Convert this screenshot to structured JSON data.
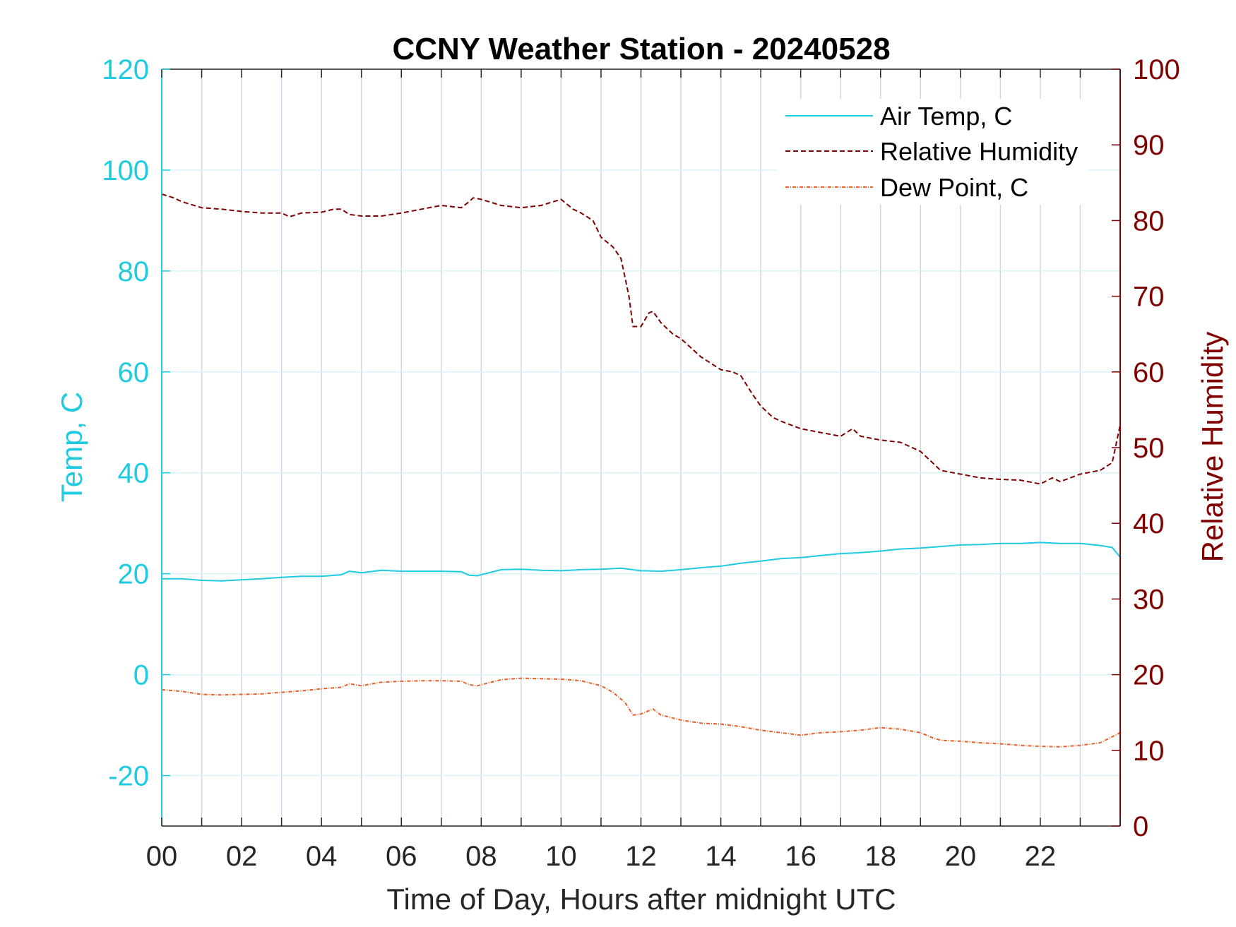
{
  "chart_data": {
    "type": "line",
    "title": "CCNY Weather Station - 20240528",
    "xlabel": "Time of Day, Hours after midnight UTC",
    "ylabel_left": "Temp, C",
    "ylabel_right": "Relative Humidity",
    "xlim": [
      0,
      24
    ],
    "ylim_left": [
      -30,
      120
    ],
    "ylim_right": [
      0,
      100
    ],
    "x_ticks": [
      0,
      2,
      4,
      6,
      8,
      10,
      12,
      14,
      16,
      18,
      20,
      22
    ],
    "x_tick_labels": [
      "00",
      "02",
      "04",
      "06",
      "08",
      "10",
      "12",
      "14",
      "16",
      "18",
      "20",
      "22"
    ],
    "y_left_ticks": [
      -20,
      0,
      20,
      40,
      60,
      80,
      100,
      120
    ],
    "y_left_tick_labels": [
      "-20",
      "0",
      "20",
      "40",
      "60",
      "80",
      "100",
      "120"
    ],
    "y_right_ticks": [
      0,
      10,
      20,
      30,
      40,
      50,
      60,
      70,
      80,
      90,
      100
    ],
    "y_right_tick_labels": [
      "0",
      "10",
      "20",
      "30",
      "40",
      "50",
      "60",
      "70",
      "80",
      "90",
      "100"
    ],
    "grid": true,
    "legend_position": "top-right",
    "colors": {
      "left_axis": "#1ecbe1",
      "right_axis": "#800000",
      "air_temp": "#1ecbe1",
      "humidity": "#800000",
      "dew_point": "#e4622a",
      "grid_vertical": "#cfd6dd",
      "grid_horizontal": "#d8f3f8"
    },
    "series": [
      {
        "name": "Air Temp, C",
        "axis": "left",
        "style": "solid",
        "x": [
          0,
          0.5,
          1,
          1.5,
          2,
          2.5,
          3,
          3.5,
          4,
          4.5,
          4.7,
          5,
          5.5,
          6,
          6.5,
          7,
          7.5,
          7.7,
          7.9,
          8.2,
          8.5,
          9,
          9.5,
          10,
          10.5,
          11,
          11.5,
          12,
          12.5,
          13,
          13.5,
          14,
          14.5,
          15,
          15.5,
          16,
          16.5,
          17,
          17.5,
          18,
          18.5,
          19,
          19.5,
          20,
          20.5,
          21,
          21.5,
          22,
          22.5,
          23,
          23.5,
          23.8,
          24
        ],
        "y": [
          19,
          19,
          18.7,
          18.6,
          18.8,
          19,
          19.3,
          19.5,
          19.5,
          19.8,
          20.5,
          20.2,
          20.7,
          20.5,
          20.5,
          20.5,
          20.4,
          19.7,
          19.6,
          20.2,
          20.8,
          20.9,
          20.7,
          20.6,
          20.8,
          20.9,
          21.1,
          20.6,
          20.5,
          20.8,
          21.2,
          21.5,
          22.1,
          22.5,
          23,
          23.2,
          23.6,
          24,
          24.2,
          24.5,
          24.9,
          25.1,
          25.4,
          25.7,
          25.8,
          26,
          26,
          26.2,
          26,
          26,
          25.6,
          25.2,
          23.3
        ]
      },
      {
        "name": "Relative Humidity",
        "axis": "right",
        "style": "dashed",
        "x": [
          0,
          0.3,
          0.5,
          1,
          1.5,
          2,
          2.5,
          3,
          3.2,
          3.5,
          4,
          4.3,
          4.5,
          4.7,
          5,
          5.5,
          6,
          6.5,
          7,
          7.5,
          7.7,
          7.8,
          8,
          8.5,
          9,
          9.5,
          10,
          10.3,
          10.5,
          10.8,
          11,
          11.3,
          11.5,
          11.7,
          11.8,
          12,
          12.2,
          12.3,
          12.5,
          12.8,
          13,
          13.5,
          14,
          14.3,
          14.5,
          14.8,
          15,
          15.3,
          15.5,
          16,
          16.5,
          17,
          17.3,
          17.5,
          18,
          18.5,
          19,
          19.3,
          19.5,
          20,
          20.5,
          21,
          21.5,
          22,
          22.3,
          22.5,
          23,
          23.5,
          23.8,
          24
        ],
        "y": [
          83.5,
          83,
          82.5,
          81.7,
          81.5,
          81.2,
          81,
          81,
          80.5,
          81,
          81.1,
          81.5,
          81.5,
          80.8,
          80.6,
          80.6,
          81,
          81.5,
          82,
          81.7,
          82.5,
          83,
          82.8,
          82,
          81.7,
          82,
          82.8,
          81.5,
          81,
          80,
          77.8,
          76.5,
          75,
          70,
          66,
          66,
          67.8,
          68,
          66.5,
          65,
          64.4,
          62,
          60.3,
          60,
          59.5,
          57,
          55.5,
          54,
          53.5,
          52.5,
          52,
          51.5,
          52.5,
          51.5,
          51,
          50.7,
          49.5,
          48,
          47,
          46.5,
          46,
          45.8,
          45.7,
          45.2,
          46,
          45.5,
          46.5,
          47,
          48,
          53
        ]
      },
      {
        "name": "Dew Point, C",
        "axis": "left",
        "style": "dashdot",
        "x": [
          0,
          0.5,
          1,
          1.5,
          2,
          2.5,
          3,
          3.5,
          4,
          4.5,
          4.7,
          5,
          5.5,
          6,
          6.5,
          7,
          7.5,
          7.7,
          7.9,
          8.5,
          9,
          9.5,
          10,
          10.5,
          11,
          11.3,
          11.6,
          11.8,
          12,
          12.3,
          12.5,
          13,
          13.5,
          14,
          14.5,
          15,
          15.5,
          16,
          16.5,
          17,
          17.5,
          18,
          18.5,
          19,
          19.3,
          19.5,
          20,
          20.5,
          21,
          21.5,
          22,
          22.5,
          23,
          23.5,
          24
        ],
        "y": [
          -3,
          -3.3,
          -3.9,
          -4,
          -3.9,
          -3.8,
          -3.5,
          -3.2,
          -2.8,
          -2.5,
          -1.8,
          -2.2,
          -1.5,
          -1.3,
          -1.2,
          -1.2,
          -1.3,
          -2,
          -2.2,
          -1,
          -0.7,
          -0.8,
          -0.9,
          -1.2,
          -2.2,
          -3.5,
          -5.5,
          -8,
          -7.8,
          -6.8,
          -8,
          -9,
          -9.6,
          -9.8,
          -10.3,
          -11,
          -11.5,
          -12,
          -11.5,
          -11.3,
          -11,
          -10.5,
          -10.8,
          -11.5,
          -12.5,
          -13,
          -13.2,
          -13.5,
          -13.7,
          -14,
          -14.2,
          -14.3,
          -14,
          -13.5,
          -11.5
        ]
      }
    ]
  }
}
